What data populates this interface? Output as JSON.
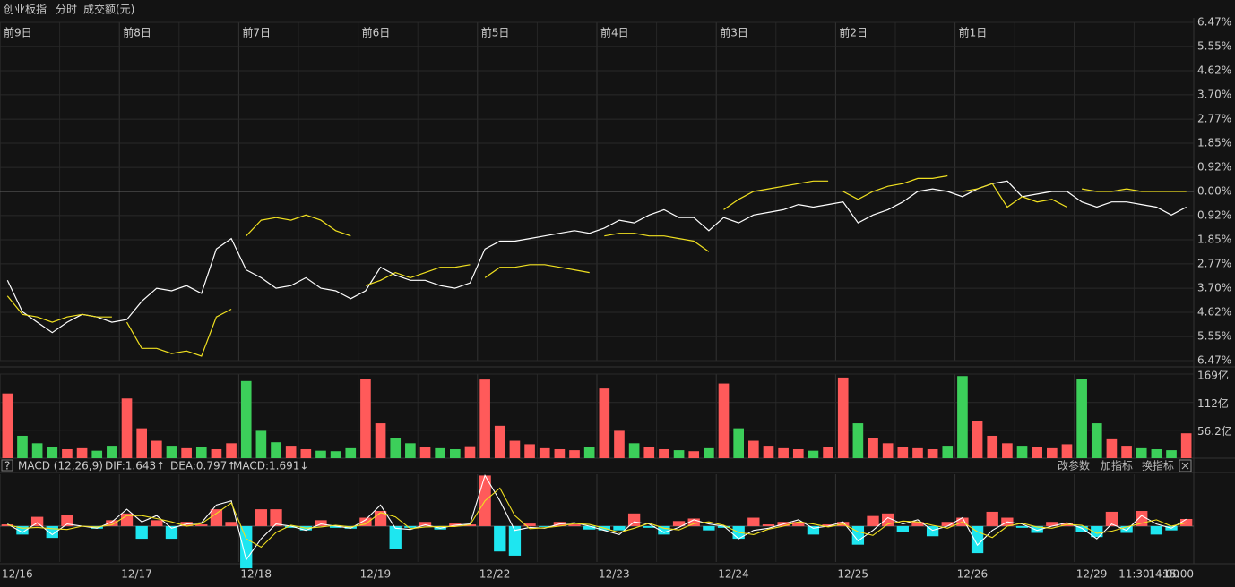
{
  "header": {
    "name": "创业板指",
    "mode": "分时",
    "indicator": "成交额(元)"
  },
  "chart_data": [
    {
      "type": "line",
      "day_labels": [
        "前9日",
        "前8日",
        "前7日",
        "前6日",
        "前5日",
        "前4日",
        "前3日",
        "前2日",
        "前1日"
      ],
      "ylim": [
        -6.47,
        6.47
      ],
      "yticks": [
        {
          "value": 6.47,
          "label": "6.47%"
        },
        {
          "value": 5.55,
          "label": "5.55%"
        },
        {
          "value": 4.62,
          "label": "4.62%"
        },
        {
          "value": 3.7,
          "label": "3.70%"
        },
        {
          "value": 2.77,
          "label": "2.77%"
        },
        {
          "value": 1.85,
          "label": "1.85%"
        },
        {
          "value": 0.92,
          "label": "0.92%"
        },
        {
          "value": 0,
          "label": "0.00%"
        },
        {
          "value": -0.92,
          "label": "0.92%"
        },
        {
          "value": -1.85,
          "label": "1.85%"
        },
        {
          "value": -2.77,
          "label": "2.77%"
        },
        {
          "value": -3.7,
          "label": "3.70%"
        },
        {
          "value": -4.62,
          "label": "4.62%"
        },
        {
          "value": -5.55,
          "label": "5.55%"
        },
        {
          "value": -6.47,
          "label": "6.47%"
        }
      ],
      "grid": true,
      "series": [
        {
          "color": "#ffffff",
          "values": [
            -3.4,
            -4.6,
            -5.0,
            -5.4,
            -5.0,
            -4.7,
            -4.8,
            -5.0,
            -4.9,
            -4.2,
            -3.7,
            -3.8,
            -3.6,
            -3.9,
            -2.2,
            -1.8,
            -3.0,
            -3.3,
            -3.7,
            -3.6,
            -3.3,
            -3.7,
            -3.8,
            -4.1,
            -3.8,
            -2.9,
            -3.2,
            -3.4,
            -3.4,
            -3.6,
            -3.7,
            -3.5,
            -2.2,
            -1.9,
            -1.9,
            -1.8,
            -1.7,
            -1.6,
            -1.5,
            -1.6,
            -1.4,
            -1.1,
            -1.2,
            -0.9,
            -0.7,
            -1.0,
            -1.0,
            -1.5,
            -1.0,
            -1.2,
            -0.9,
            -0.8,
            -0.7,
            -0.5,
            -0.6,
            -0.5,
            -0.4,
            -1.2,
            -0.9,
            -0.7,
            -0.4,
            0.0,
            0.1,
            0.0,
            -0.2,
            0.1,
            0.3,
            0.4,
            -0.2,
            -0.1,
            0.0,
            0.0,
            -0.4,
            -0.6,
            -0.4,
            -0.4,
            -0.5,
            -0.6,
            -0.9,
            -0.6
          ]
        },
        {
          "color": "#f0e020",
          "segmented": true,
          "values": [
            -4.0,
            -4.7,
            -4.8,
            -5.0,
            -4.8,
            -4.7,
            -4.8,
            -4.8,
            -5.0,
            -6.0,
            -6.0,
            -6.2,
            -6.1,
            -6.3,
            -4.8,
            -4.5,
            -1.7,
            -1.1,
            -1.0,
            -1.1,
            -0.9,
            -1.1,
            -1.5,
            -1.7,
            -3.6,
            -3.4,
            -3.1,
            -3.3,
            -3.1,
            -2.9,
            -2.9,
            -2.8,
            -3.3,
            -2.9,
            -2.9,
            -2.8,
            -2.8,
            -2.9,
            -3.0,
            -3.1,
            -1.7,
            -1.6,
            -1.6,
            -1.7,
            -1.7,
            -1.8,
            -1.9,
            -2.3,
            -0.7,
            -0.3,
            0.0,
            0.1,
            0.2,
            0.3,
            0.4,
            0.4,
            0.0,
            -0.3,
            0.0,
            0.2,
            0.3,
            0.5,
            0.5,
            0.6,
            0.0,
            0.1,
            0.3,
            -0.6,
            -0.2,
            -0.4,
            -0.3,
            -0.6,
            0.1,
            0.0,
            0.0,
            0.1,
            0.0,
            0.0,
            0.0,
            0.0
          ]
        }
      ]
    },
    {
      "type": "bar",
      "ylim": [
        0,
        169
      ],
      "yticks": [
        {
          "value": 169,
          "label": "169亿"
        },
        {
          "value": 112,
          "label": "112亿"
        },
        {
          "value": 56.2,
          "label": "56.2亿"
        }
      ],
      "colors": [
        "#ff5a5a",
        "#3ccf5a"
      ],
      "values": [
        130,
        45,
        30,
        22,
        18,
        20,
        15,
        25,
        120,
        60,
        35,
        25,
        20,
        22,
        18,
        30,
        155,
        55,
        32,
        25,
        18,
        15,
        14,
        20,
        160,
        70,
        40,
        30,
        22,
        20,
        18,
        24,
        158,
        65,
        35,
        28,
        20,
        18,
        16,
        22,
        140,
        55,
        30,
        22,
        18,
        16,
        14,
        20,
        150,
        60,
        35,
        25,
        20,
        18,
        15,
        22,
        162,
        70,
        40,
        30,
        22,
        20,
        18,
        25,
        165,
        75,
        45,
        30,
        25,
        22,
        20,
        28,
        160,
        70,
        38,
        25,
        20,
        18,
        16,
        50
      ]
    },
    {
      "type": "macd",
      "title": "MACD (12,26,9)",
      "dif_label": "DIF:1.643↑",
      "dea_label": "DEA:0.797↑",
      "macd_label": "MACD:1.691↓",
      "buttons": [
        "改参数",
        "加指标",
        "换指标"
      ],
      "ylim": [
        -8.5,
        12.3
      ],
      "series": [
        {
          "color": "#ffffff",
          "values": [
            0.5,
            -1.5,
            0.8,
            -2.0,
            0.5,
            0.0,
            -0.5,
            1.0,
            4.0,
            1.0,
            2.5,
            -0.5,
            0.5,
            0.8,
            5.0,
            6.0,
            -8.0,
            -3.0,
            0.5,
            0.0,
            -1.0,
            0.5,
            0.0,
            -0.5,
            1.5,
            5.0,
            -0.5,
            -0.8,
            0.3,
            -0.5,
            0.2,
            0.5,
            12.0,
            6.0,
            -1.0,
            -0.3,
            -0.5,
            0.5,
            0.8,
            0.0,
            -1.0,
            -2.0,
            1.0,
            0.5,
            -1.5,
            -0.3,
            1.5,
            0.5,
            0.0,
            -3.0,
            -1.0,
            -0.5,
            0.5,
            1.5,
            -0.5,
            0.0,
            1.0,
            -3.5,
            -1.0,
            2.0,
            0.5,
            1.5,
            -1.0,
            0.0,
            2.0,
            -4.5,
            -1.0,
            1.0,
            0.5,
            -1.0,
            0.0,
            0.8,
            -0.5,
            -3.0,
            0.5,
            -1.0,
            2.5,
            0.5,
            -0.5,
            1.643
          ]
        },
        {
          "color": "#f0e020",
          "values": [
            0.3,
            -0.5,
            -0.3,
            -0.6,
            -0.8,
            0.0,
            -0.2,
            0.3,
            2.5,
            2.5,
            1.8,
            1.0,
            0.0,
            0.6,
            3.0,
            5.5,
            -3.0,
            -5.0,
            -1.5,
            0.2,
            -0.5,
            -0.2,
            0.2,
            -0.2,
            0.5,
            3.2,
            2.2,
            -0.6,
            -0.2,
            -0.1,
            -0.1,
            0.3,
            6.0,
            9.0,
            2.5,
            -0.6,
            -0.4,
            0.0,
            0.6,
            0.4,
            -0.5,
            -1.5,
            -0.5,
            0.7,
            -0.5,
            -0.9,
            0.6,
            1.0,
            0.2,
            -1.5,
            -2.0,
            -0.7,
            0.0,
            1.0,
            0.5,
            -0.2,
            0.5,
            -1.3,
            -2.2,
            0.5,
            1.2,
            1.0,
            0.2,
            -0.5,
            1.0,
            -1.3,
            -2.7,
            0.0,
            0.7,
            -0.2,
            -0.5,
            0.4,
            0.2,
            -1.7,
            -1.2,
            -0.2,
            0.7,
            1.5,
            0.0,
            0.797
          ]
        }
      ],
      "histogram": {
        "colors": [
          "#ff5a5a",
          "#1ee6f0"
        ],
        "values": [
          0.4,
          -2.0,
          2.2,
          -2.8,
          2.6,
          0,
          -0.6,
          1.4,
          3.0,
          -3.0,
          1.4,
          -3.0,
          1.0,
          0.4,
          4.0,
          1.0,
          -10,
          4.0,
          4.0,
          -0.4,
          -1.0,
          1.4,
          -0.4,
          -0.6,
          2.0,
          3.6,
          -5.4,
          -0.4,
          1.0,
          -0.8,
          0.6,
          0.4,
          12,
          -6,
          -7,
          0.6,
          -0.2,
          1.0,
          0.4,
          -0.8,
          -1.0,
          -1.0,
          3.0,
          -0.4,
          -2.0,
          1.2,
          1.8,
          -1.0,
          -0.4,
          -3.0,
          2.0,
          0.4,
          1.0,
          1.0,
          -2.0,
          0.4,
          1.0,
          -4.4,
          2.4,
          3.0,
          -1.4,
          1.0,
          -2.4,
          1.0,
          2.0,
          -6.4,
          3.4,
          2.0,
          -0.4,
          -1.6,
          1.0,
          0.8,
          -1.4,
          -2.6,
          3.4,
          -1.6,
          3.6,
          -2.0,
          -1.0,
          1.691
        ]
      },
      "x_labels": [
        "12/16",
        "12/17",
        "12/18",
        "12/19",
        "12/22",
        "12/23",
        "12/24",
        "12/25",
        "12/26",
        "12/29",
        "11:30",
        "14:00",
        "15:00"
      ]
    }
  ]
}
